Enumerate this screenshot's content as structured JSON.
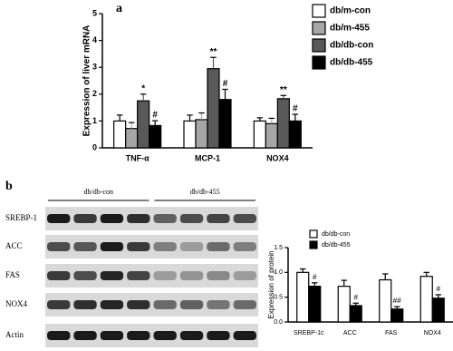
{
  "panel_labels": [
    "a",
    "b"
  ],
  "blot": {
    "groups": [
      "db/db-con",
      "db/db-455"
    ],
    "rows": [
      "SREBP-1",
      "ACC",
      "FAS",
      "NOX4",
      "Actin"
    ]
  },
  "chart_data": [
    {
      "type": "bar",
      "y_label": "Expression of liver mRNA",
      "categories": [
        "TNF-α",
        "MCP-1",
        "NOX4"
      ],
      "ylim": [
        0,
        5
      ],
      "yticks": [
        0,
        1,
        2,
        3,
        4,
        5
      ],
      "series": [
        {
          "name": "db/m-con",
          "color": "#ffffff",
          "values": [
            1.0,
            1.0,
            1.0
          ],
          "errors": [
            0.22,
            0.22,
            0.12
          ]
        },
        {
          "name": "db/m-455",
          "color": "#a6a6a6",
          "values": [
            0.72,
            1.05,
            0.9
          ],
          "errors": [
            0.22,
            0.25,
            0.2
          ]
        },
        {
          "name": "db/db-con",
          "color": "#595959",
          "values": [
            1.75,
            2.95,
            1.83
          ],
          "errors": [
            0.25,
            0.42,
            0.12
          ],
          "annotations": [
            "*",
            "**",
            "**"
          ]
        },
        {
          "name": "db/db-455",
          "color": "#000000",
          "values": [
            0.83,
            1.8,
            1.0
          ],
          "errors": [
            0.18,
            0.38,
            0.25
          ],
          "annotations": [
            "#",
            "#",
            "#"
          ]
        }
      ]
    },
    {
      "type": "bar",
      "y_label": "Expression of protein",
      "categories": [
        "SREBP-1c",
        "ACC",
        "FAS",
        "NOX4"
      ],
      "ylim": [
        0,
        1.5
      ],
      "yticks": [
        {
          "value": 0,
          "label": "0.0"
        },
        0.5,
        {
          "value": 1,
          "label": "1.0"
        },
        1.5
      ],
      "series": [
        {
          "name": "db/db-con",
          "color": "#ffffff",
          "values": [
            1.0,
            0.72,
            0.85,
            0.92
          ],
          "errors": [
            0.07,
            0.12,
            0.12,
            0.08
          ]
        },
        {
          "name": "db/db-455",
          "color": "#000000",
          "values": [
            0.72,
            0.33,
            0.26,
            0.48
          ],
          "errors": [
            0.07,
            0.05,
            0.05,
            0.07
          ],
          "annotations": [
            "#",
            "#",
            "##",
            "#"
          ]
        }
      ]
    }
  ]
}
